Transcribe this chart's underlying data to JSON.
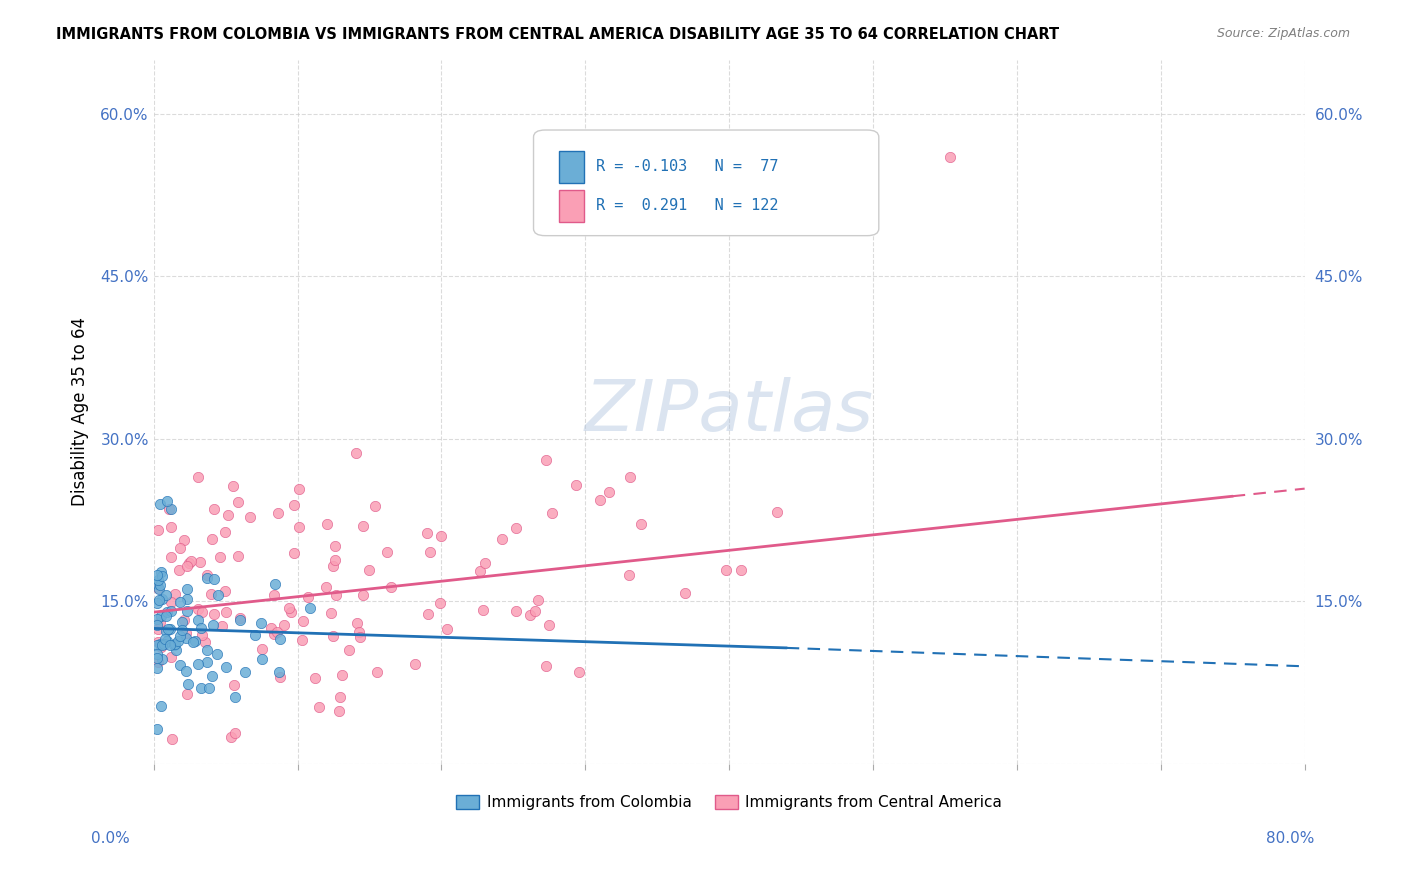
{
  "title": "IMMIGRANTS FROM COLOMBIA VS IMMIGRANTS FROM CENTRAL AMERICA DISABILITY AGE 35 TO 64 CORRELATION CHART",
  "source": "Source: ZipAtlas.com",
  "ylabel": "Disability Age 35 to 64",
  "watermark": "ZIPatlas",
  "colombia_color": "#6baed6",
  "central_america_color": "#fa9fb5",
  "trendline_colombia_color": "#2171b5",
  "trendline_ca_color": "#e05a8a",
  "background_color": "#ffffff",
  "grid_color": "#cccccc"
}
